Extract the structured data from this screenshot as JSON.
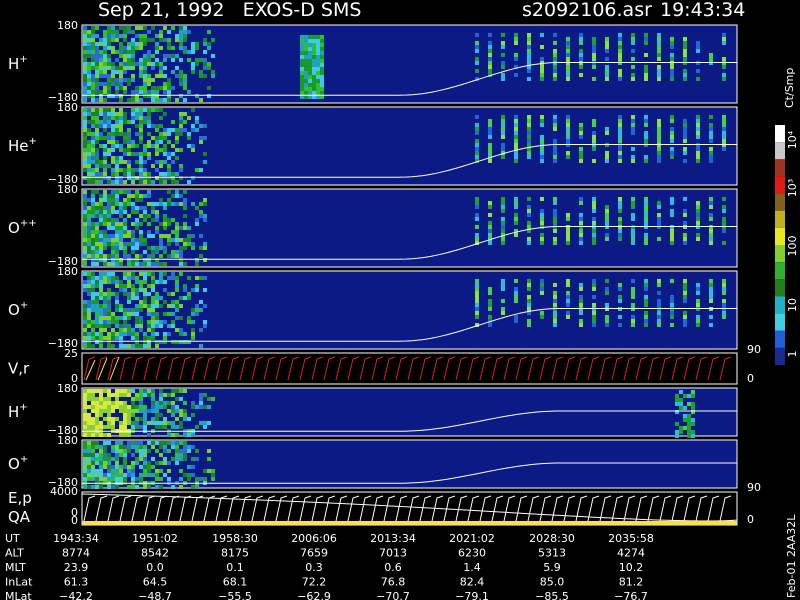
{
  "header": {
    "title": "Sep 21, 1992   EXOS-D SMS",
    "file": "s2092106.asr",
    "time": "19:43:34"
  },
  "panels": [
    {
      "label": "H",
      "sup": "+",
      "ticks": [
        "180",
        "−180"
      ]
    },
    {
      "label": "He",
      "sup": "+",
      "ticks": [
        "180",
        "−180"
      ]
    },
    {
      "label": "O",
      "sup": "++",
      "ticks": [
        "180",
        "−180"
      ]
    },
    {
      "label": "O",
      "sup": "+",
      "ticks": [
        "180",
        "−180"
      ]
    },
    {
      "label": "V,r",
      "ticks": [
        "25",
        "0"
      ],
      "right_ticks": [
        "90",
        "0"
      ]
    },
    {
      "label": "H",
      "sup": "+",
      "ticks": [
        "180",
        "−180"
      ]
    },
    {
      "label": "O",
      "sup": "+",
      "ticks": [
        "180",
        "−180"
      ]
    },
    {
      "label": "E,p",
      "label2": "QA",
      "ticks": [
        "4000",
        "0",
        "0"
      ],
      "right_ticks": [
        "90",
        "0"
      ]
    }
  ],
  "colorbar": {
    "unit": "Ct/Smp",
    "labels": [
      "10⁴",
      "10³",
      "100",
      "10",
      "1"
    ]
  },
  "footer": {
    "rows": [
      {
        "name": "UT",
        "values": [
          "1943:34",
          "1951:02",
          "1958:30",
          "2006:06",
          "2013:34",
          "2021:02",
          "2028:30",
          "2035:58"
        ]
      },
      {
        "name": "ALT",
        "values": [
          "8774",
          "8542",
          "8175",
          "7659",
          "7013",
          "6230",
          "5313",
          "4274"
        ]
      },
      {
        "name": "MLT",
        "values": [
          "23.9",
          "0.0",
          "0.1",
          "0.3",
          "0.6",
          "1.4",
          "5.9",
          "10.2"
        ]
      },
      {
        "name": "InLat",
        "values": [
          "61.3",
          "64.5",
          "68.1",
          "72.2",
          "76.8",
          "82.4",
          "85.0",
          "81.2"
        ]
      },
      {
        "name": "MLat",
        "values": [
          "−42.2",
          "−48.7",
          "−55.5",
          "−62.9",
          "−70.7",
          "−79.1",
          "−85.5",
          "−76.7"
        ]
      }
    ]
  },
  "side_note": "Feb-01 2AA32L"
}
